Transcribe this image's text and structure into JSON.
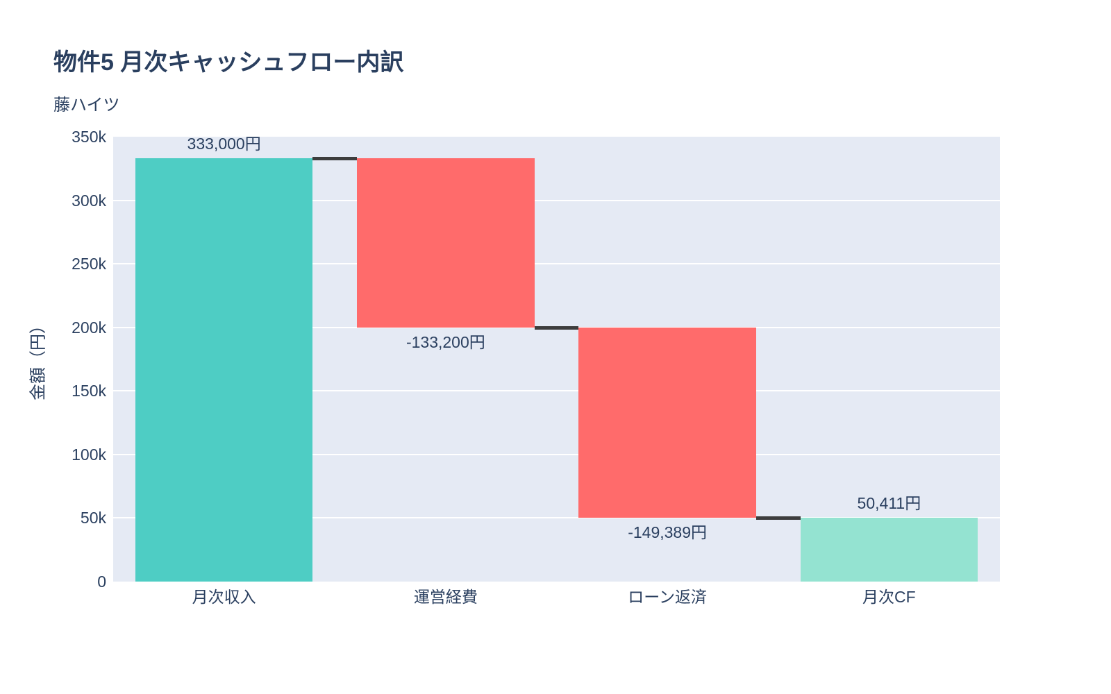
{
  "header": {
    "title": "物件5 月次キャッシュフロー内訳",
    "subtitle": "藤ハイツ"
  },
  "chart_data": {
    "type": "bar",
    "subtype": "waterfall",
    "title": "物件5 月次キャッシュフロー内訳",
    "subtitle": "藤ハイツ",
    "categories": [
      "月次収入",
      "運営経費",
      "ローン返済",
      "月次CF"
    ],
    "values": [
      333000,
      -133200,
      -149389,
      50411
    ],
    "measures": [
      "relative",
      "relative",
      "relative",
      "total"
    ],
    "bar_labels": [
      "333,000円",
      "-133,200円",
      "-149,389円",
      "50,411円"
    ],
    "label_positions": [
      "above",
      "below",
      "below",
      "above"
    ],
    "xlabel": "",
    "ylabel": "金額（円）",
    "ylim": [
      0,
      350000
    ],
    "ytick_values": [
      0,
      50000,
      100000,
      150000,
      200000,
      250000,
      300000,
      350000
    ],
    "ytick_labels": [
      "0",
      "50k",
      "100k",
      "150k",
      "200k",
      "250k",
      "300k",
      "350k"
    ],
    "grid": true,
    "legend": "none",
    "colors": {
      "increasing": "#4ECDC4",
      "decreasing": "#FF6B6B",
      "total": "#94E3D1",
      "connector": "#3D3D3D",
      "plot_background": "#E5EAF4",
      "grid": "#FFFFFF",
      "text": "#2A3F5F"
    }
  }
}
